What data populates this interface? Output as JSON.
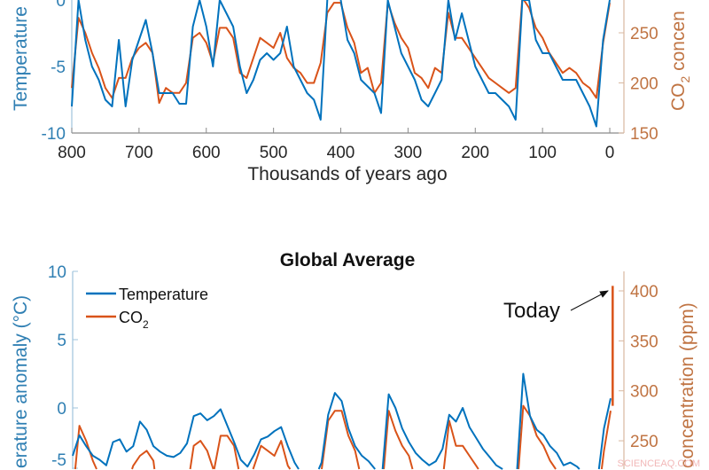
{
  "colors": {
    "temperature": "#0072BD",
    "co2": "#D95319",
    "left_axis": "#2f7fb3",
    "right_axis": "#c07443",
    "text": "#262626"
  },
  "watermark": "SCIENCEAQ.COM",
  "chart_data": [
    {
      "type": "line",
      "title": "",
      "xlabel": "Thousands of years ago",
      "ylabel_left": "Temperature",
      "ylabel_right_prefix": "CO",
      "ylabel_right_sub": "2",
      "ylabel_right_suffix": " concen",
      "xlim": [
        800,
        -20
      ],
      "ylim_left": [
        -10,
        0
      ],
      "ylim_right": [
        150,
        283
      ],
      "xticks": [
        800,
        700,
        600,
        500,
        400,
        300,
        200,
        100,
        0
      ],
      "yticks_left": [
        -10,
        -5,
        0
      ],
      "yticks_right": [
        150,
        200,
        250
      ],
      "grid": false,
      "x": [
        800,
        790,
        780,
        770,
        760,
        750,
        740,
        730,
        720,
        710,
        700,
        690,
        680,
        670,
        660,
        650,
        640,
        630,
        620,
        610,
        600,
        590,
        580,
        570,
        560,
        550,
        540,
        530,
        520,
        510,
        500,
        490,
        480,
        470,
        460,
        450,
        440,
        430,
        420,
        410,
        400,
        390,
        380,
        370,
        360,
        350,
        340,
        330,
        320,
        310,
        300,
        290,
        280,
        270,
        260,
        250,
        240,
        230,
        220,
        210,
        200,
        190,
        180,
        170,
        160,
        150,
        140,
        130,
        120,
        110,
        100,
        90,
        80,
        70,
        60,
        50,
        40,
        30,
        20,
        10,
        0
      ],
      "series": [
        {
          "axis": "left",
          "values": [
            -8,
            0,
            -3,
            -5,
            -6,
            -7.5,
            -8,
            -3,
            -8,
            -4.5,
            -3,
            -1.5,
            -4,
            -7,
            -7,
            -7,
            -7.8,
            -7.8,
            -2,
            0,
            -2,
            -5,
            0,
            -1,
            -2,
            -5,
            -7,
            -6,
            -4.5,
            -4,
            -4.5,
            -4,
            -2,
            -5,
            -6,
            -7,
            -7.5,
            -9,
            0,
            1,
            0,
            -3,
            -4,
            -6,
            -6.5,
            -7,
            -8.5,
            0,
            -2,
            -4,
            -5,
            -6,
            -7.5,
            -8,
            -7,
            -6,
            0,
            -3,
            -1,
            -3,
            -5,
            -6,
            -7,
            -7,
            -7.5,
            -8,
            -9,
            0,
            0,
            -3,
            -4,
            -4,
            -5,
            -6,
            -6,
            -6,
            -7,
            -8,
            -9.5,
            -3,
            0
          ]
        },
        {
          "axis": "right",
          "values": [
            195,
            265,
            250,
            230,
            215,
            195,
            185,
            205,
            205,
            225,
            235,
            240,
            230,
            180,
            195,
            190,
            190,
            200,
            245,
            250,
            240,
            220,
            255,
            255,
            245,
            210,
            205,
            225,
            245,
            240,
            235,
            250,
            225,
            215,
            210,
            200,
            200,
            220,
            270,
            280,
            280,
            255,
            240,
            210,
            215,
            190,
            200,
            280,
            260,
            245,
            235,
            210,
            205,
            195,
            215,
            210,
            270,
            245,
            245,
            235,
            225,
            215,
            205,
            200,
            195,
            190,
            195,
            285,
            275,
            255,
            245,
            230,
            220,
            210,
            215,
            210,
            200,
            195,
            185,
            240,
            280
          ]
        }
      ]
    },
    {
      "type": "line",
      "title": "Global Average",
      "xlabel": "",
      "ylabel_left": "erature anomaly (°C)",
      "ylabel_right": "concentration (ppm)",
      "xlim": [
        800,
        -20
      ],
      "ylim_left": [
        -4.6,
        10
      ],
      "ylim_right": [
        220,
        420
      ],
      "yticks_left": [
        10,
        5,
        0,
        -5
      ],
      "yticks_right": [
        400,
        350,
        300,
        250
      ],
      "grid": false,
      "legend_position": "top-left",
      "legend": [
        {
          "label": "Temperature"
        },
        {
          "label_prefix": "CO",
          "label_sub": "2"
        }
      ],
      "annotation": {
        "text": "Today",
        "x": -3,
        "y": 405
      },
      "x": [
        800,
        790,
        780,
        770,
        760,
        750,
        740,
        730,
        720,
        710,
        700,
        690,
        680,
        670,
        660,
        650,
        640,
        630,
        620,
        610,
        600,
        590,
        580,
        570,
        560,
        550,
        540,
        530,
        520,
        510,
        500,
        490,
        480,
        470,
        460,
        450,
        440,
        430,
        420,
        410,
        400,
        390,
        380,
        370,
        360,
        350,
        340,
        330,
        320,
        310,
        300,
        290,
        280,
        270,
        260,
        250,
        240,
        230,
        220,
        210,
        200,
        190,
        180,
        170,
        160,
        150,
        140,
        130,
        120,
        110,
        100,
        90,
        80,
        70,
        60,
        50,
        40,
        30,
        20,
        10,
        0
      ],
      "series": [
        {
          "axis": "left",
          "values": [
            -3.5,
            -2.0,
            -2.8,
            -3.5,
            -3.8,
            -4.2,
            -2.5,
            -2.3,
            -3.2,
            -2.8,
            -1.0,
            -1.6,
            -2.8,
            -3.2,
            -3.5,
            -3.6,
            -3.3,
            -2.6,
            -0.6,
            -0.4,
            -0.9,
            -0.6,
            -0.1,
            -1.3,
            -2.5,
            -3.8,
            -4.3,
            -3.4,
            -2.3,
            -2.1,
            -1.7,
            -1.4,
            -2.8,
            -4.0,
            -4.8,
            -5.0,
            -5.2,
            -4.0,
            -0.5,
            1.1,
            0.5,
            -1.5,
            -2.8,
            -3.5,
            -3.9,
            -4.5,
            -5.0,
            1.0,
            0.0,
            -1.5,
            -2.5,
            -3.3,
            -3.8,
            -4.2,
            -3.9,
            -3.0,
            -0.5,
            -1.0,
            0.0,
            -1.4,
            -2.2,
            -3.0,
            -3.6,
            -4.2,
            -4.5,
            -4.8,
            -5.2,
            2.5,
            -0.6,
            -1.6,
            -2.0,
            -2.8,
            -3.3,
            -4.2,
            -4.0,
            -4.3,
            -4.8,
            -5.2,
            -5.5,
            -1.5,
            0.7
          ]
        },
        {
          "axis": "right",
          "values": [
            195,
            265,
            250,
            230,
            215,
            195,
            185,
            205,
            205,
            225,
            235,
            240,
            230,
            180,
            195,
            190,
            190,
            200,
            245,
            250,
            240,
            220,
            255,
            255,
            245,
            210,
            205,
            225,
            245,
            240,
            235,
            250,
            225,
            215,
            210,
            200,
            200,
            220,
            270,
            280,
            280,
            255,
            240,
            210,
            215,
            190,
            200,
            280,
            260,
            245,
            235,
            210,
            205,
            195,
            215,
            210,
            270,
            245,
            245,
            235,
            225,
            215,
            205,
            200,
            195,
            190,
            195,
            285,
            275,
            255,
            245,
            230,
            220,
            210,
            215,
            210,
            200,
            195,
            185,
            240,
            280
          ],
          "today": {
            "x": -3,
            "values": [
              285,
              405
            ]
          }
        }
      ]
    }
  ]
}
